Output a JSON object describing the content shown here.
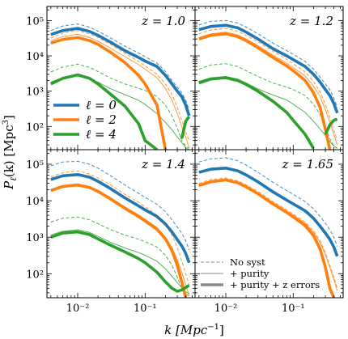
{
  "figure": {
    "ylabel_main": "P",
    "ylabel_sub": "ℓ",
    "ylabel_rest": "(k) [Mpc",
    "ylabel_sup": "3",
    "ylabel_close": "]",
    "xlabel_main": "k [Mpc",
    "xlabel_sup": "−1",
    "xlabel_close": "]"
  },
  "colors": {
    "l0": "#1f77b4",
    "l2": "#ff7f0e",
    "l4": "#2ca02c",
    "legend_gray": "#888888"
  },
  "legend_multipoles": [
    {
      "label": "ℓ = 0",
      "color": "#1f77b4"
    },
    {
      "label": "ℓ = 2",
      "color": "#ff7f0e"
    },
    {
      "label": "ℓ = 4",
      "color": "#2ca02c"
    }
  ],
  "legend_styles": [
    {
      "label": "No syst",
      "style": "dashed"
    },
    {
      "label": "+ purity",
      "style": "thin"
    },
    {
      "label": "+ purity + z errors",
      "style": "thick"
    }
  ],
  "chart_data": [
    {
      "type": "line",
      "redshift_label": "z = 1.0",
      "xscale": "log",
      "yscale": "log",
      "xlim": [
        0.0035,
        0.55
      ],
      "ylim": [
        22,
        250000
      ],
      "x_ticks": [
        0.01,
        0.1
      ],
      "x_tick_labels": [
        "10⁻²",
        "10⁻¹"
      ],
      "y_ticks": [
        100,
        1000,
        10000,
        100000
      ],
      "y_tick_labels": [
        "10²",
        "10³",
        "10⁴",
        "10⁵"
      ],
      "x": [
        0.004,
        0.006,
        0.01,
        0.015,
        0.02,
        0.03,
        0.05,
        0.08,
        0.1,
        0.15,
        0.2,
        0.25,
        0.3,
        0.35,
        0.4,
        0.45
      ],
      "series": [
        {
          "multipole": 0,
          "style": "dashed",
          "values": [
            52000,
            70000,
            80000,
            65000,
            50000,
            33000,
            19000,
            12000,
            9500,
            6200,
            3600,
            2000,
            1300,
            900,
            550,
            300
          ]
        },
        {
          "multipole": 0,
          "style": "thin",
          "values": [
            42000,
            55000,
            64000,
            52000,
            40000,
            26000,
            15000,
            9500,
            7500,
            5200,
            3000,
            1700,
            1100,
            750,
            450,
            240
          ]
        },
        {
          "multipole": 0,
          "style": "thick",
          "values": [
            40000,
            52000,
            60000,
            49000,
            38000,
            25000,
            14000,
            9000,
            7100,
            5000,
            2800,
            1600,
            1000,
            700,
            400,
            200
          ]
        },
        {
          "multipole": 2,
          "style": "dashed",
          "values": [
            32000,
            44000,
            52000,
            42000,
            33000,
            22000,
            12000,
            7000,
            5200,
            3000,
            1600,
            800,
            350,
            150,
            70,
            40
          ]
        },
        {
          "multipole": 2,
          "style": "thin",
          "values": [
            27000,
            35000,
            41000,
            33000,
            26000,
            17000,
            9500,
            5600,
            4200,
            2400,
            1200,
            550,
            230,
            100,
            50,
            25
          ]
        },
        {
          "multipole": 2,
          "style": "thick",
          "values": [
            23000,
            29000,
            33000,
            27000,
            21000,
            13000,
            6500,
            2800,
            1600,
            400,
            22,
            null,
            null,
            null,
            null,
            null
          ]
        },
        {
          "multipole": 4,
          "style": "dashed",
          "values": [
            3500,
            4800,
            5800,
            4700,
            3600,
            2400,
            1600,
            1200,
            1050,
            700,
            400,
            200,
            90,
            40,
            28,
            24
          ]
        },
        {
          "multipole": 4,
          "style": "thin",
          "values": [
            1800,
            2400,
            2800,
            2300,
            1800,
            1200,
            800,
            550,
            420,
            230,
            130,
            80,
            50,
            35,
            25,
            22
          ]
        },
        {
          "multipole": 4,
          "style": "thick",
          "values": [
            1600,
            2300,
            2900,
            2300,
            1600,
            850,
            380,
            120,
            40,
            22,
            null,
            null,
            null,
            45,
            140,
            190
          ]
        }
      ]
    },
    {
      "type": "line",
      "redshift_label": "z = 1.2",
      "xscale": "log",
      "yscale": "log",
      "xlim": [
        0.0035,
        0.55
      ],
      "ylim": [
        22,
        250000
      ],
      "x_ticks": [
        0.01,
        0.1
      ],
      "x_tick_labels": [
        "10⁻²",
        "10⁻¹"
      ],
      "y_ticks": [
        100,
        1000,
        10000,
        100000
      ],
      "y_tick_labels": [
        "10²",
        "10³",
        "10⁴",
        "10⁵"
      ],
      "x": [
        0.004,
        0.006,
        0.01,
        0.015,
        0.02,
        0.03,
        0.05,
        0.08,
        0.1,
        0.15,
        0.2,
        0.25,
        0.3,
        0.35,
        0.4,
        0.45
      ],
      "series": [
        {
          "multipole": 0,
          "style": "dashed",
          "values": [
            75000,
            95000,
            100000,
            85000,
            65000,
            42000,
            23000,
            14000,
            11000,
            7000,
            4200,
            2500,
            1600,
            1100,
            650,
            350
          ]
        },
        {
          "multipole": 0,
          "style": "thin",
          "values": [
            58000,
            72000,
            78000,
            65000,
            50000,
            32000,
            17000,
            10500,
            8200,
            5200,
            3200,
            1900,
            1200,
            800,
            480,
            260
          ]
        },
        {
          "multipole": 0,
          "style": "thick",
          "values": [
            55000,
            68000,
            73000,
            62000,
            47000,
            30000,
            16000,
            10000,
            7800,
            5000,
            3000,
            1800,
            1100,
            750,
            450,
            240
          ]
        },
        {
          "multipole": 2,
          "style": "dashed",
          "values": [
            42000,
            54000,
            60000,
            50000,
            38000,
            25000,
            13500,
            8000,
            6000,
            3500,
            1900,
            950,
            420,
            180,
            80,
            40
          ]
        },
        {
          "multipole": 2,
          "style": "thin",
          "values": [
            33000,
            42000,
            47000,
            39000,
            30000,
            19500,
            10500,
            6200,
            4600,
            2700,
            1400,
            700,
            300,
            130,
            60,
            30
          ]
        },
        {
          "multipole": 2,
          "style": "thick",
          "values": [
            30000,
            38000,
            42000,
            35000,
            27000,
            17000,
            9000,
            5200,
            3800,
            2000,
            900,
            350,
            80,
            22,
            null,
            null
          ]
        },
        {
          "multipole": 4,
          "style": "dashed",
          "values": [
            4200,
            5500,
            6000,
            5000,
            3800,
            2600,
            1700,
            1300,
            1100,
            750,
            420,
            220,
            100,
            45,
            28,
            24
          ]
        },
        {
          "multipole": 4,
          "style": "thin",
          "values": [
            1900,
            2400,
            2600,
            2200,
            1700,
            1150,
            780,
            560,
            430,
            250,
            140,
            85,
            55,
            38,
            28,
            24
          ]
        },
        {
          "multipole": 4,
          "style": "thick",
          "values": [
            1700,
            2200,
            2400,
            2000,
            1550,
            1000,
            520,
            250,
            150,
            60,
            24,
            null,
            60,
            110,
            150,
            160
          ]
        }
      ]
    },
    {
      "type": "line",
      "redshift_label": "z = 1.4",
      "xscale": "log",
      "yscale": "log",
      "xlim": [
        0.0035,
        0.55
      ],
      "ylim": [
        22,
        250000
      ],
      "x_ticks": [
        0.01,
        0.1
      ],
      "x_tick_labels": [
        "10⁻²",
        "10⁻¹"
      ],
      "y_ticks": [
        100,
        1000,
        10000,
        100000
      ],
      "y_tick_labels": [
        "10²",
        "10³",
        "10⁴",
        "10⁵"
      ],
      "x": [
        0.004,
        0.006,
        0.01,
        0.015,
        0.02,
        0.03,
        0.05,
        0.08,
        0.1,
        0.15,
        0.2,
        0.25,
        0.3,
        0.35,
        0.4,
        0.45
      ],
      "series": [
        {
          "multipole": 0,
          "style": "dashed",
          "values": [
            90000,
            115000,
            120000,
            100000,
            78000,
            50000,
            27000,
            16000,
            12500,
            8000,
            5000,
            3000,
            1900,
            1300,
            800,
            450
          ]
        },
        {
          "multipole": 0,
          "style": "thin",
          "values": [
            40000,
            50000,
            55000,
            46000,
            36000,
            23000,
            12500,
            7600,
            6000,
            3900,
            2400,
            1450,
            900,
            620,
            380,
            210
          ]
        },
        {
          "multipole": 0,
          "style": "thick",
          "values": [
            38000,
            48000,
            52000,
            44000,
            34000,
            22000,
            12000,
            7200,
            5600,
            3700,
            2300,
            1400,
            860,
            580,
            360,
            200
          ]
        },
        {
          "multipole": 2,
          "style": "dashed",
          "values": [
            45000,
            58000,
            65000,
            54000,
            42000,
            28000,
            15000,
            9000,
            6800,
            4000,
            2200,
            1150,
            520,
            220,
            100,
            50
          ]
        },
        {
          "multipole": 2,
          "style": "thin",
          "values": [
            20000,
            26000,
            29000,
            24500,
            19000,
            12500,
            6800,
            4100,
            3100,
            1850,
            1000,
            520,
            240,
            110,
            50,
            25
          ]
        },
        {
          "multipole": 2,
          "style": "thick",
          "values": [
            19000,
            24500,
            27000,
            23000,
            18000,
            11500,
            6200,
            3700,
            2800,
            1650,
            900,
            430,
            170,
            60,
            22,
            null
          ]
        },
        {
          "multipole": 4,
          "style": "dashed",
          "values": [
            2600,
            3300,
            3600,
            3000,
            2350,
            1650,
            1150,
            880,
            760,
            540,
            320,
            170,
            80,
            40,
            28,
            24
          ]
        },
        {
          "multipole": 4,
          "style": "thin",
          "values": [
            1150,
            1450,
            1600,
            1350,
            1050,
            740,
            510,
            380,
            320,
            220,
            135,
            85,
            57,
            42,
            32,
            28
          ]
        },
        {
          "multipole": 4,
          "style": "thick",
          "values": [
            1000,
            1300,
            1400,
            1180,
            900,
            620,
            400,
            260,
            200,
            110,
            60,
            40,
            33,
            36,
            42,
            48
          ]
        }
      ]
    },
    {
      "type": "line",
      "redshift_label": "z = 1.65",
      "xscale": "log",
      "yscale": "log",
      "xlim": [
        0.0035,
        0.55
      ],
      "ylim": [
        22,
        250000
      ],
      "x_ticks": [
        0.01,
        0.1
      ],
      "x_tick_labels": [
        "10⁻²",
        "10⁻¹"
      ],
      "y_ticks": [
        100,
        1000,
        10000,
        100000
      ],
      "y_tick_labels": [
        "10²",
        "10³",
        "10⁴",
        "10⁵"
      ],
      "x": [
        0.004,
        0.006,
        0.01,
        0.015,
        0.02,
        0.03,
        0.05,
        0.08,
        0.1,
        0.15,
        0.2,
        0.25,
        0.3,
        0.35,
        0.4,
        0.45
      ],
      "series": [
        {
          "multipole": 0,
          "style": "dashed",
          "values": [
            115000,
            140000,
            150000,
            125000,
            95000,
            60000,
            32000,
            19000,
            15000,
            9500,
            6000,
            3700,
            2400,
            1600,
            1000,
            560
          ]
        },
        {
          "multipole": 0,
          "style": "thin",
          "values": [
            62000,
            76000,
            82000,
            69000,
            53000,
            34000,
            18000,
            10800,
            8500,
            5500,
            3400,
            2100,
            1350,
            900,
            560,
            310
          ]
        },
        {
          "multipole": 0,
          "style": "thick",
          "values": [
            60000,
            73000,
            78000,
            66000,
            51000,
            33000,
            17500,
            10400,
            8200,
            5300,
            3300,
            2000,
            1300,
            870,
            540,
            300
          ]
        },
        {
          "multipole": 2,
          "style": "dashed",
          "values": [
            30000,
            38000,
            42000,
            35000,
            27000,
            18000,
            9500,
            5600,
            4300,
            2600,
            1500,
            800,
            380,
            170,
            80,
            40
          ]
        },
        {
          "multipole": 2,
          "style": "thin",
          "values": [
            28000,
            35000,
            39000,
            32500,
            25000,
            16500,
            8800,
            5200,
            4000,
            2400,
            1350,
            720,
            330,
            150,
            70,
            34
          ]
        },
        {
          "multipole": 2,
          "style": "thick",
          "values": [
            26000,
            33000,
            37000,
            31000,
            24000,
            15500,
            8200,
            4800,
            3600,
            2100,
            1100,
            480,
            150,
            40,
            22,
            null
          ]
        },
        {
          "multipole": 4,
          "style": "dashed",
          "values": [
            null,
            null,
            null,
            null,
            null,
            null,
            null,
            null,
            null,
            null,
            null,
            null,
            null,
            null,
            null,
            null
          ]
        },
        {
          "multipole": 4,
          "style": "thin",
          "values": [
            null,
            null,
            null,
            null,
            null,
            null,
            null,
            null,
            null,
            null,
            null,
            null,
            null,
            null,
            null,
            null
          ]
        },
        {
          "multipole": 4,
          "style": "thick",
          "values": [
            null,
            null,
            null,
            null,
            null,
            null,
            null,
            null,
            null,
            null,
            null,
            null,
            null,
            null,
            null,
            null
          ]
        }
      ]
    }
  ]
}
